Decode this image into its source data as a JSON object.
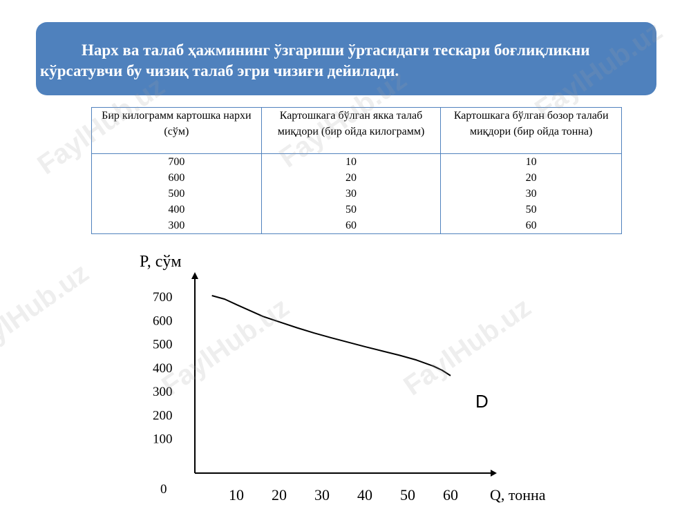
{
  "banner": {
    "text": "Нарх ва талаб ҳажмининг ўзгариши ўртасидаги тескари боғлиқликни кўрсатувчи бу чизиқ талаб эгри чизиғи дейилади."
  },
  "table": {
    "headers": [
      "Бир килограмм картошка нархи (сўм)",
      "Картошкага бўлган якка талаб миқдори (бир ойда килограмм)",
      "Картошкага бўлган бозор талаби миқдори (бир ойда тонна)"
    ],
    "columns": [
      [
        "700",
        "600",
        "500",
        "400",
        "300"
      ],
      [
        "10",
        "20",
        "30",
        "50",
        "60"
      ],
      [
        "10",
        "20",
        "30",
        "50",
        "60"
      ]
    ]
  },
  "watermark": "FaylHub.uz",
  "chart_data": {
    "type": "line",
    "ylabel": "P, сўм",
    "xlabel": "Q, тонна",
    "y_ticks": [
      "700",
      "600",
      "500",
      "400",
      "300",
      "200",
      "100",
      "0"
    ],
    "x_ticks": [
      "10",
      "20",
      "30",
      "40",
      "50",
      "60"
    ],
    "ylim": [
      0,
      700
    ],
    "xlim": [
      0,
      60
    ],
    "grid": false,
    "series": [
      {
        "name": "D",
        "x": [
          4,
          7,
          10,
          13,
          16,
          20,
          24,
          28,
          32,
          36,
          40,
          44,
          48,
          52,
          56,
          58,
          60
        ],
        "y": [
          700,
          685,
          660,
          636,
          612,
          588,
          564,
          542,
          522,
          503,
          484,
          466,
          448,
          428,
          402,
          385,
          362
        ]
      }
    ]
  }
}
